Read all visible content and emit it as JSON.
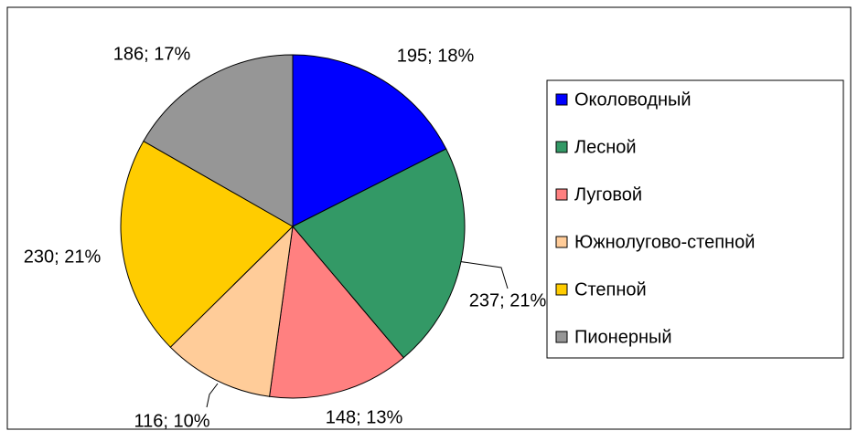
{
  "chart_data": {
    "type": "pie",
    "categories": [
      "Околоводный",
      "Лесной",
      "Луговой",
      "Южнолугово-степной",
      "Степной",
      "Пионерный"
    ],
    "values": [
      195,
      237,
      148,
      116,
      230,
      186
    ],
    "value_labels": [
      "195; 18%",
      "237; 21%",
      "148; 13%",
      "116; 10%",
      "230; 21%",
      "186; 17%"
    ],
    "colors": [
      "#0000ff",
      "#339966",
      "#ff8080",
      "#ffcc99",
      "#ffcc00",
      "#969696"
    ],
    "legend": "right"
  }
}
